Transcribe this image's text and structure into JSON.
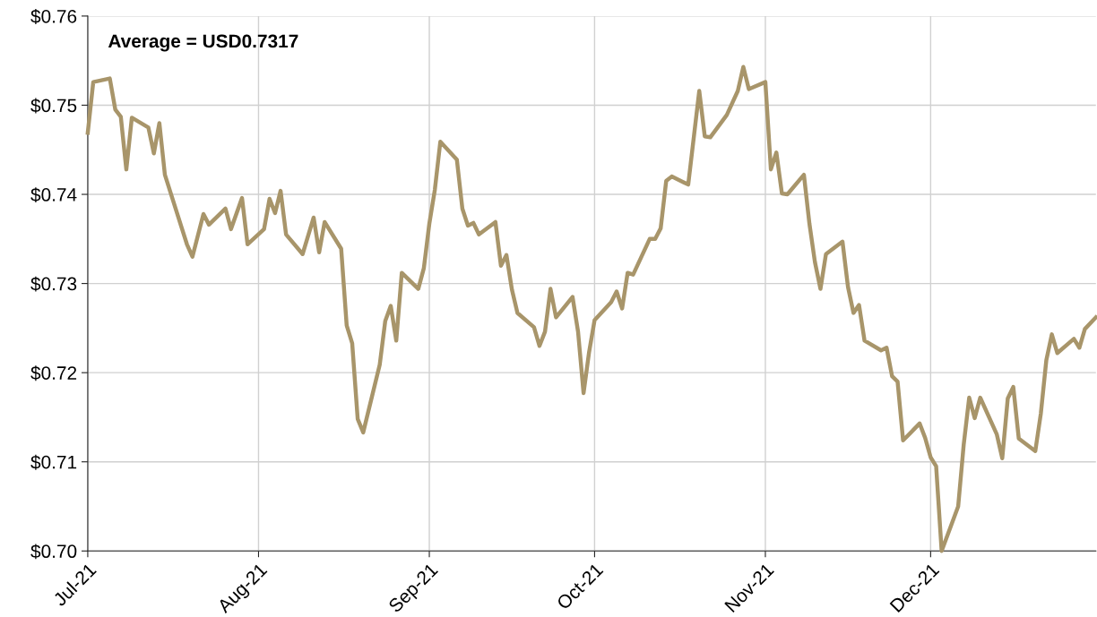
{
  "chart_data": {
    "type": "line",
    "annotations": [
      "Average = USD0.7317"
    ],
    "x": [
      "2021-07-01",
      "2021-07-02",
      "2021-07-05",
      "2021-07-06",
      "2021-07-07",
      "2021-07-08",
      "2021-07-09",
      "2021-07-12",
      "2021-07-13",
      "2021-07-14",
      "2021-07-15",
      "2021-07-19",
      "2021-07-20",
      "2021-07-22",
      "2021-07-23",
      "2021-07-26",
      "2021-07-27",
      "2021-07-29",
      "2021-07-30",
      "2021-08-02",
      "2021-08-03",
      "2021-08-04",
      "2021-08-05",
      "2021-08-06",
      "2021-08-09",
      "2021-08-11",
      "2021-08-12",
      "2021-08-13",
      "2021-08-16",
      "2021-08-17",
      "2021-08-18",
      "2021-08-19",
      "2021-08-20",
      "2021-08-23",
      "2021-08-24",
      "2021-08-25",
      "2021-08-26",
      "2021-08-27",
      "2021-08-30",
      "2021-08-31",
      "2021-09-01",
      "2021-09-02",
      "2021-09-03",
      "2021-09-06",
      "2021-09-07",
      "2021-09-08",
      "2021-09-09",
      "2021-09-10",
      "2021-09-13",
      "2021-09-14",
      "2021-09-15",
      "2021-09-16",
      "2021-09-17",
      "2021-09-20",
      "2021-09-21",
      "2021-09-22",
      "2021-09-23",
      "2021-09-24",
      "2021-09-27",
      "2021-09-28",
      "2021-09-29",
      "2021-09-30",
      "2021-10-01",
      "2021-10-04",
      "2021-10-05",
      "2021-10-06",
      "2021-10-07",
      "2021-10-08",
      "2021-10-11",
      "2021-10-12",
      "2021-10-13",
      "2021-10-14",
      "2021-10-15",
      "2021-10-18",
      "2021-10-20",
      "2021-10-21",
      "2021-10-22",
      "2021-10-25",
      "2021-10-27",
      "2021-10-28",
      "2021-10-29",
      "2021-11-01",
      "2021-11-02",
      "2021-11-03",
      "2021-11-04",
      "2021-11-05",
      "2021-11-08",
      "2021-11-09",
      "2021-11-10",
      "2021-11-11",
      "2021-11-12",
      "2021-11-15",
      "2021-11-16",
      "2021-11-17",
      "2021-11-18",
      "2021-11-19",
      "2021-11-22",
      "2021-11-23",
      "2021-11-24",
      "2021-11-25",
      "2021-11-26",
      "2021-11-29",
      "2021-11-30",
      "2021-12-01",
      "2021-12-02",
      "2021-12-03",
      "2021-12-06",
      "2021-12-07",
      "2021-12-08",
      "2021-12-09",
      "2021-12-10",
      "2021-12-13",
      "2021-12-14",
      "2021-12-15",
      "2021-12-16",
      "2021-12-17",
      "2021-12-20",
      "2021-12-21",
      "2021-12-22",
      "2021-12-23",
      "2021-12-24",
      "2021-12-27",
      "2021-12-28",
      "2021-12-29",
      "2021-12-31"
    ],
    "series": [
      {
        "color": "#a8956a",
        "values": [
          0.7469,
          0.7526,
          0.753,
          0.7495,
          0.7487,
          0.7428,
          0.7486,
          0.7475,
          0.7446,
          0.748,
          0.7422,
          0.7344,
          0.733,
          0.7378,
          0.7366,
          0.7384,
          0.7361,
          0.7396,
          0.7344,
          0.7361,
          0.7395,
          0.7379,
          0.7404,
          0.7355,
          0.7333,
          0.7374,
          0.7335,
          0.7369,
          0.7339,
          0.7253,
          0.7233,
          0.7148,
          0.7133,
          0.7209,
          0.7258,
          0.7275,
          0.7236,
          0.7312,
          0.7294,
          0.7317,
          0.7367,
          0.7405,
          0.7459,
          0.7439,
          0.7384,
          0.7365,
          0.7368,
          0.7355,
          0.7369,
          0.732,
          0.7332,
          0.7293,
          0.7267,
          0.7251,
          0.723,
          0.7246,
          0.7294,
          0.7262,
          0.7285,
          0.7246,
          0.7177,
          0.7223,
          0.7259,
          0.7279,
          0.7291,
          0.7272,
          0.7312,
          0.731,
          0.735,
          0.735,
          0.7362,
          0.7415,
          0.742,
          0.7411,
          0.7516,
          0.7465,
          0.7464,
          0.7489,
          0.7516,
          0.7543,
          0.7518,
          0.7526,
          0.7428,
          0.7447,
          0.7401,
          0.74,
          0.7422,
          0.7367,
          0.7324,
          0.7294,
          0.7333,
          0.7347,
          0.7296,
          0.7267,
          0.7276,
          0.7236,
          0.7225,
          0.7228,
          0.7196,
          0.719,
          0.7124,
          0.7143,
          0.7127,
          0.7105,
          0.7095,
          0.7,
          0.705,
          0.7119,
          0.7172,
          0.7149,
          0.7172,
          0.7131,
          0.7104,
          0.7171,
          0.7184,
          0.7126,
          0.7112,
          0.7154,
          0.7214,
          0.7243,
          0.7222,
          0.7238,
          0.7228,
          0.7249,
          0.7262
        ]
      }
    ],
    "xlim": [
      "2021-07-01",
      "2021-12-31"
    ],
    "xticks": [
      {
        "value": "2021-07-01",
        "label": "Jul-21"
      },
      {
        "value": "2021-08-01",
        "label": "Aug-21"
      },
      {
        "value": "2021-09-01",
        "label": "Sep-21"
      },
      {
        "value": "2021-10-01",
        "label": "Oct-21"
      },
      {
        "value": "2021-11-01",
        "label": "Nov-21"
      },
      {
        "value": "2021-12-01",
        "label": "Dec-21"
      }
    ],
    "ylim": [
      0.7,
      0.76
    ],
    "yticks": [
      {
        "value": 0.7,
        "label": "$0.70"
      },
      {
        "value": 0.71,
        "label": "$0.71"
      },
      {
        "value": 0.72,
        "label": "$0.72"
      },
      {
        "value": 0.73,
        "label": "$0.73"
      },
      {
        "value": 0.74,
        "label": "$0.74"
      },
      {
        "value": 0.75,
        "label": "$0.75"
      },
      {
        "value": 0.76,
        "label": "$0.76"
      }
    ],
    "grid": true,
    "marker": "none",
    "line_style": "solid"
  }
}
